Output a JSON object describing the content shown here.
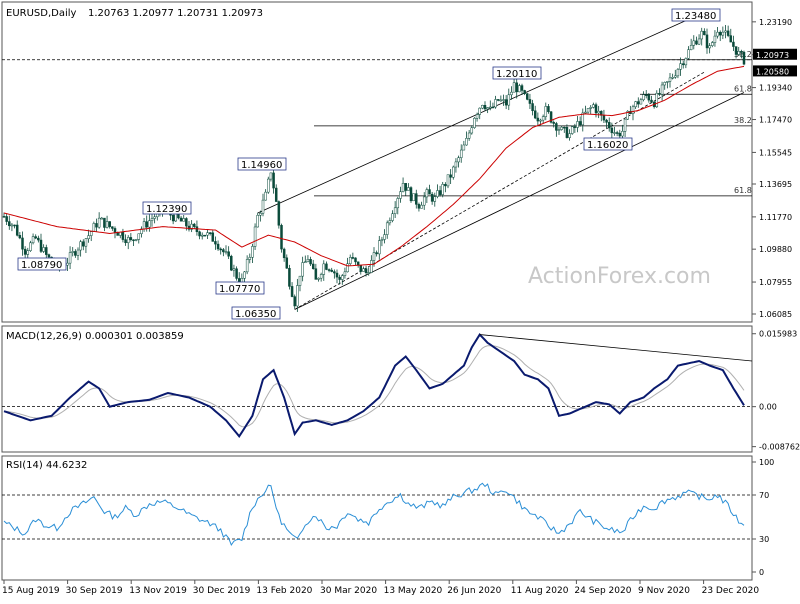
{
  "header": {
    "symbol": "EURUSD,Daily",
    "ohlc": "1.20763 1.20977 1.20731 1.20973"
  },
  "watermark": "ActionForex.com",
  "chart_data": [
    {
      "type": "candlestick",
      "panel": "price",
      "ylim": [
        1.0585,
        1.24
      ],
      "y_ticks": [
        "1.23190",
        "1.21265",
        "1.19340",
        "1.17470",
        "1.15545",
        "1.13695",
        "1.11770",
        "1.09880",
        "1.07955",
        "1.06085"
      ],
      "y_tick_values": [
        1.2319,
        1.21265,
        1.1934,
        1.1747,
        1.15545,
        1.13695,
        1.1177,
        1.0988,
        1.07955,
        1.06085
      ],
      "price_tags": [
        {
          "label": "1.20973",
          "value": 1.2097
        },
        {
          "label": "1.20580",
          "value": 1.2058
        }
      ],
      "callouts": [
        {
          "label": "1.08790",
          "value": 1.0879
        },
        {
          "label": "1.12390",
          "value": 1.1239
        },
        {
          "label": "1.07770",
          "value": 1.0777
        },
        {
          "label": "1.14960",
          "value": 1.1496
        },
        {
          "label": "1.06350",
          "value": 1.0635
        },
        {
          "label": "1.20110",
          "value": 1.2011
        },
        {
          "label": "1.16020",
          "value": 1.1602
        },
        {
          "label": "1.23480",
          "value": 1.2348
        }
      ],
      "fib_levels": [
        {
          "label": "38.2",
          "value": 1.2097
        },
        {
          "label": "61.8",
          "value": 1.1895
        },
        {
          "label": "38.2",
          "value": 1.171
        },
        {
          "label": "61.8",
          "value": 1.13
        }
      ],
      "close_waypoints": [
        [
          0,
          1.118
        ],
        [
          4,
          1.112
        ],
        [
          8,
          1.098
        ],
        [
          12,
          1.105
        ],
        [
          16,
          1.095
        ],
        [
          20,
          1.088
        ],
        [
          24,
          1.092
        ],
        [
          28,
          1.1
        ],
        [
          32,
          1.107
        ],
        [
          36,
          1.116
        ],
        [
          40,
          1.112
        ],
        [
          44,
          1.108
        ],
        [
          48,
          1.103
        ],
        [
          52,
          1.111
        ],
        [
          56,
          1.117
        ],
        [
          60,
          1.122
        ],
        [
          64,
          1.118
        ],
        [
          68,
          1.114
        ],
        [
          72,
          1.11
        ],
        [
          76,
          1.108
        ],
        [
          80,
          1.104
        ],
        [
          84,
          1.095
        ],
        [
          88,
          1.083
        ],
        [
          90,
          1.08
        ],
        [
          93,
          1.095
        ],
        [
          96,
          1.118
        ],
        [
          99,
          1.13
        ],
        [
          101,
          1.145
        ],
        [
          103,
          1.126
        ],
        [
          105,
          1.1
        ],
        [
          108,
          1.08
        ],
        [
          110,
          1.068
        ],
        [
          112,
          1.085
        ],
        [
          115,
          1.094
        ],
        [
          118,
          1.08
        ],
        [
          121,
          1.09
        ],
        [
          124,
          1.088
        ],
        [
          127,
          1.08
        ],
        [
          131,
          1.094
        ],
        [
          134,
          1.088
        ],
        [
          137,
          1.085
        ],
        [
          140,
          1.094
        ],
        [
          143,
          1.105
        ],
        [
          146,
          1.118
        ],
        [
          149,
          1.13
        ],
        [
          151,
          1.138
        ],
        [
          154,
          1.13
        ],
        [
          157,
          1.125
        ],
        [
          160,
          1.131
        ],
        [
          163,
          1.128
        ],
        [
          166,
          1.135
        ],
        [
          169,
          1.142
        ],
        [
          172,
          1.152
        ],
        [
          175,
          1.162
        ],
        [
          178,
          1.177
        ],
        [
          181,
          1.185
        ],
        [
          184,
          1.18
        ],
        [
          187,
          1.186
        ],
        [
          190,
          1.184
        ],
        [
          193,
          1.195
        ],
        [
          196,
          1.19
        ],
        [
          199,
          1.182
        ],
        [
          202,
          1.176
        ],
        [
          205,
          1.18
        ],
        [
          208,
          1.173
        ],
        [
          211,
          1.168
        ],
        [
          214,
          1.166
        ],
        [
          217,
          1.172
        ],
        [
          220,
          1.178
        ],
        [
          223,
          1.183
        ],
        [
          226,
          1.176
        ],
        [
          229,
          1.171
        ],
        [
          232,
          1.166
        ],
        [
          234,
          1.168
        ],
        [
          237,
          1.181
        ],
        [
          240,
          1.185
        ],
        [
          243,
          1.189
        ],
        [
          246,
          1.185
        ],
        [
          249,
          1.192
        ],
        [
          252,
          1.198
        ],
        [
          255,
          1.205
        ],
        [
          258,
          1.212
        ],
        [
          261,
          1.22
        ],
        [
          264,
          1.225
        ],
        [
          267,
          1.216
        ],
        [
          270,
          1.228
        ],
        [
          272,
          1.226
        ],
        [
          275,
          1.22
        ],
        [
          278,
          1.213
        ],
        [
          280,
          1.2097
        ]
      ],
      "ma_waypoints": [
        [
          0,
          1.12
        ],
        [
          20,
          1.112
        ],
        [
          40,
          1.108
        ],
        [
          60,
          1.112
        ],
        [
          80,
          1.11
        ],
        [
          90,
          1.1
        ],
        [
          100,
          1.107
        ],
        [
          110,
          1.103
        ],
        [
          120,
          1.095
        ],
        [
          130,
          1.089
        ],
        [
          140,
          1.09
        ],
        [
          150,
          1.1
        ],
        [
          160,
          1.112
        ],
        [
          170,
          1.125
        ],
        [
          180,
          1.14
        ],
        [
          190,
          1.158
        ],
        [
          200,
          1.17
        ],
        [
          210,
          1.176
        ],
        [
          220,
          1.178
        ],
        [
          230,
          1.177
        ],
        [
          240,
          1.18
        ],
        [
          250,
          1.186
        ],
        [
          260,
          1.195
        ],
        [
          270,
          1.203
        ],
        [
          280,
          1.2058
        ]
      ],
      "trendlines": [
        {
          "from": [
            96,
            1.12
          ],
          "to": [
            265,
            1.2375
          ]
        },
        {
          "from": [
            110,
            1.0635
          ],
          "to": [
            280,
            1.1905
          ]
        },
        {
          "from": [
            110,
            1.0635
          ],
          "to": [
            265,
            1.2025
          ]
        }
      ]
    },
    {
      "type": "macd",
      "panel": "macd",
      "label": "MACD(12,26,9) 0.000301 0.003859",
      "ylim": [
        -0.0095,
        0.0168
      ],
      "y_ticks": [
        "0.015983",
        "0.00",
        "-0.008762"
      ],
      "y_tick_values": [
        0.015983,
        0.0,
        -0.008762
      ],
      "macd_waypoints": [
        [
          0,
          -0.001
        ],
        [
          5,
          -0.002
        ],
        [
          10,
          -0.003
        ],
        [
          18,
          -0.002
        ],
        [
          25,
          0.002
        ],
        [
          32,
          0.0055
        ],
        [
          36,
          0.004
        ],
        [
          40,
          0.0
        ],
        [
          47,
          0.001
        ],
        [
          55,
          0.0015
        ],
        [
          62,
          0.003
        ],
        [
          70,
          0.002
        ],
        [
          78,
          0.0
        ],
        [
          84,
          -0.003
        ],
        [
          89,
          -0.0065
        ],
        [
          94,
          -0.002
        ],
        [
          98,
          0.006
        ],
        [
          102,
          0.008
        ],
        [
          106,
          0.002
        ],
        [
          110,
          -0.006
        ],
        [
          113,
          -0.0035
        ],
        [
          118,
          -0.003
        ],
        [
          124,
          -0.004
        ],
        [
          130,
          -0.003
        ],
        [
          136,
          -0.001
        ],
        [
          142,
          0.002
        ],
        [
          148,
          0.009
        ],
        [
          152,
          0.011
        ],
        [
          156,
          0.008
        ],
        [
          161,
          0.004
        ],
        [
          166,
          0.005
        ],
        [
          170,
          0.007
        ],
        [
          174,
          0.009
        ],
        [
          177,
          0.013
        ],
        [
          180,
          0.0158
        ],
        [
          183,
          0.014
        ],
        [
          188,
          0.012
        ],
        [
          193,
          0.01
        ],
        [
          197,
          0.007
        ],
        [
          202,
          0.006
        ],
        [
          206,
          0.004
        ],
        [
          210,
          -0.002
        ],
        [
          214,
          -0.0015
        ],
        [
          220,
          0.0
        ],
        [
          224,
          0.001
        ],
        [
          229,
          0.0005
        ],
        [
          233,
          -0.0015
        ],
        [
          237,
          0.001
        ],
        [
          242,
          0.002
        ],
        [
          246,
          0.004
        ],
        [
          251,
          0.006
        ],
        [
          255,
          0.009
        ],
        [
          259,
          0.0095
        ],
        [
          263,
          0.01
        ],
        [
          267,
          0.009
        ],
        [
          272,
          0.008
        ],
        [
          276,
          0.004
        ],
        [
          280,
          0.000301
        ]
      ],
      "trendline": {
        "from": [
          180,
          0.0158
        ],
        "to": [
          280,
          0.01
        ]
      }
    },
    {
      "type": "line",
      "panel": "rsi",
      "label": "RSI(14) 44.6232",
      "ylim": [
        0,
        100
      ],
      "y_ticks": [
        "100",
        "70",
        "30",
        "0"
      ],
      "y_tick_values": [
        100,
        70,
        30,
        0
      ],
      "levels": [
        70,
        30
      ],
      "rsi_waypoints": [
        [
          0,
          45
        ],
        [
          4,
          40
        ],
        [
          8,
          35
        ],
        [
          12,
          48
        ],
        [
          16,
          42
        ],
        [
          20,
          40
        ],
        [
          25,
          55
        ],
        [
          30,
          62
        ],
        [
          34,
          68
        ],
        [
          38,
          55
        ],
        [
          42,
          50
        ],
        [
          46,
          58
        ],
        [
          50,
          52
        ],
        [
          55,
          62
        ],
        [
          60,
          64
        ],
        [
          66,
          58
        ],
        [
          70,
          52
        ],
        [
          74,
          48
        ],
        [
          78,
          44
        ],
        [
          82,
          38
        ],
        [
          86,
          25
        ],
        [
          90,
          30
        ],
        [
          94,
          60
        ],
        [
          98,
          72
        ],
        [
          101,
          78
        ],
        [
          104,
          50
        ],
        [
          108,
          35
        ],
        [
          111,
          28
        ],
        [
          114,
          45
        ],
        [
          118,
          52
        ],
        [
          122,
          40
        ],
        [
          126,
          42
        ],
        [
          130,
          55
        ],
        [
          134,
          48
        ],
        [
          138,
          45
        ],
        [
          142,
          58
        ],
        [
          146,
          65
        ],
        [
          150,
          70
        ],
        [
          153,
          62
        ],
        [
          157,
          58
        ],
        [
          162,
          64
        ],
        [
          166,
          60
        ],
        [
          170,
          68
        ],
        [
          174,
          72
        ],
        [
          178,
          75
        ],
        [
          182,
          80
        ],
        [
          186,
          70
        ],
        [
          190,
          75
        ],
        [
          194,
          65
        ],
        [
          198,
          55
        ],
        [
          202,
          50
        ],
        [
          206,
          42
        ],
        [
          210,
          35
        ],
        [
          214,
          44
        ],
        [
          218,
          55
        ],
        [
          222,
          48
        ],
        [
          226,
          42
        ],
        [
          230,
          38
        ],
        [
          234,
          36
        ],
        [
          238,
          50
        ],
        [
          242,
          60
        ],
        [
          246,
          58
        ],
        [
          250,
          65
        ],
        [
          254,
          68
        ],
        [
          258,
          72
        ],
        [
          262,
          70
        ],
        [
          266,
          66
        ],
        [
          270,
          70
        ],
        [
          274,
          60
        ],
        [
          278,
          46
        ],
        [
          280,
          44.6
        ]
      ]
    }
  ],
  "x_axis": {
    "labels": [
      "15 Aug 2019",
      "30 Sep 2019",
      "13 Nov 2019",
      "30 Dec 2019",
      "13 Feb 2020",
      "30 Mar 2020",
      "13 May 2020",
      "26 Jun 2020",
      "11 Aug 2020",
      "24 Sep 2020",
      "9 Nov 2020",
      "23 Dec 2020"
    ],
    "label_index": [
      0,
      32,
      63,
      96,
      128,
      160,
      192,
      224,
      256,
      288,
      320,
      352
    ]
  },
  "colors": {
    "candle": "#0a4a3a",
    "ma": "#cc0000",
    "macd": "#0a1a6e",
    "signal": "#b0b0b0",
    "rsi": "#2b8fd6",
    "line": "#000000",
    "watermark": "#c8c8c8"
  }
}
